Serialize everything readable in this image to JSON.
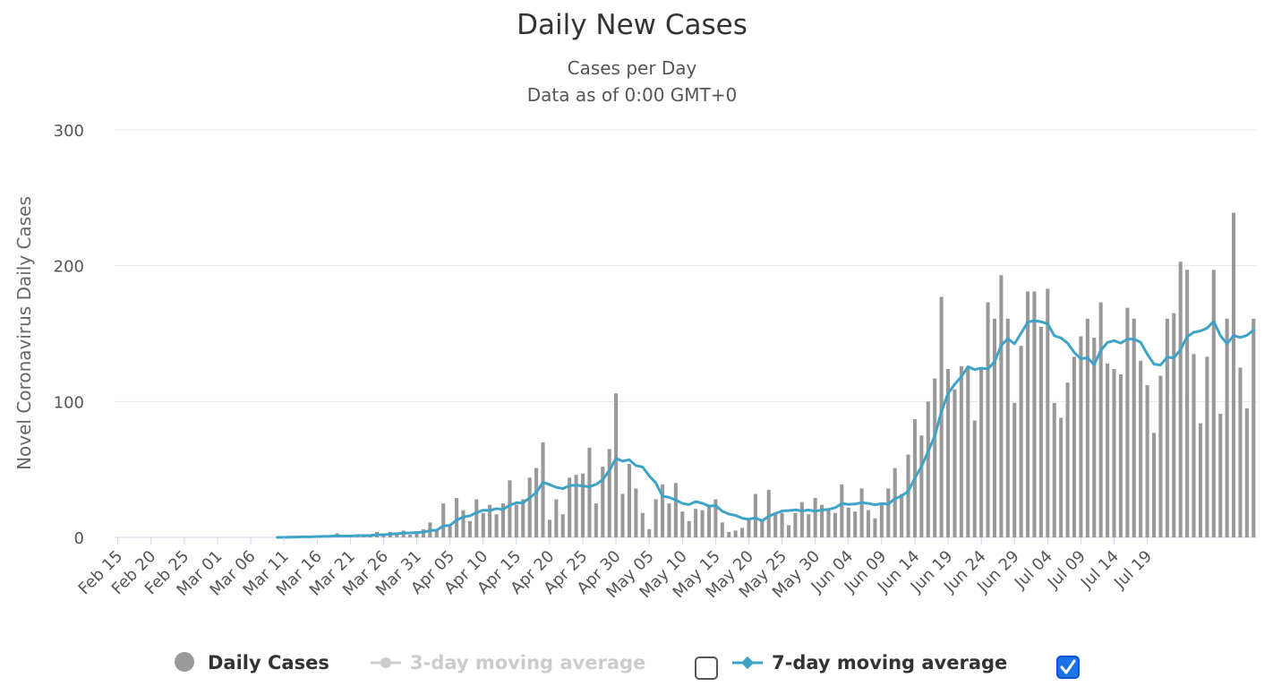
{
  "chart_data": {
    "type": "bar",
    "title": "Daily New Cases",
    "subtitle_lines": [
      "Cases per Day",
      "Data as of 0:00 GMT+0"
    ],
    "ylabel": "Novel Coronavirus Daily Cases",
    "xlabel": "",
    "ylim": [
      0,
      300
    ],
    "yticks": [
      0,
      100,
      200,
      300
    ],
    "grid": true,
    "start_date": "Feb 15",
    "x_tick_labels": [
      "Feb 15",
      "Feb 20",
      "Feb 25",
      "Mar 01",
      "Mar 06",
      "Mar 11",
      "Mar 16",
      "Mar 21",
      "Mar 26",
      "Mar 31",
      "Apr 05",
      "Apr 10",
      "Apr 15",
      "Apr 20",
      "Apr 25",
      "Apr 30",
      "May 05",
      "May 10",
      "May 15",
      "May 20",
      "May 25",
      "May 30",
      "Jun 04",
      "Jun 09",
      "Jun 14",
      "Jun 19",
      "Jun 24",
      "Jun 29",
      "Jul 04",
      "Jul 09",
      "Jul 14",
      "Jul 19"
    ],
    "x_tick_interval_days": 5,
    "series": [
      {
        "name": "Daily Cases",
        "kind": "bar",
        "color": "#999999",
        "values": [
          0,
          0,
          0,
          0,
          0,
          0,
          0,
          0,
          0,
          0,
          0,
          0,
          0,
          0,
          0,
          0,
          0,
          0,
          0,
          0,
          0,
          0,
          0,
          0,
          0,
          0,
          1,
          1,
          1,
          0,
          1,
          1,
          1,
          3,
          0,
          1,
          2,
          1,
          2,
          4,
          3,
          4,
          3,
          5,
          2,
          4,
          6,
          11,
          6,
          25,
          8,
          29,
          20,
          12,
          28,
          18,
          24,
          17,
          25,
          42,
          24,
          28,
          44,
          51,
          70,
          13,
          28,
          17,
          44,
          46,
          47,
          66,
          25,
          52,
          65,
          106,
          32,
          54,
          36,
          18,
          6,
          28,
          39,
          25,
          40,
          19,
          12,
          21,
          20,
          24,
          28,
          11,
          4,
          5,
          7,
          14,
          32,
          12,
          35,
          18,
          18,
          9,
          18,
          26,
          17,
          29,
          24,
          21,
          18,
          39,
          22,
          19,
          36,
          20,
          14,
          24,
          36,
          51,
          32,
          61,
          87,
          75,
          100,
          117,
          177,
          124,
          109,
          126,
          126,
          86,
          124,
          173,
          161,
          193,
          161,
          99,
          141,
          181,
          181,
          155,
          183,
          99,
          88,
          114,
          133,
          148,
          161,
          147,
          173,
          128,
          124,
          120,
          169,
          161,
          130,
          112,
          77,
          119,
          161,
          165,
          203,
          197,
          135,
          84,
          133,
          197,
          91,
          161,
          239,
          125,
          95,
          161
        ]
      },
      {
        "name": "3-day moving average",
        "kind": "line",
        "color": "#cccccc",
        "visible": false
      },
      {
        "name": "7-day moving average",
        "kind": "line",
        "color": "#3fa3c8",
        "visible": true
      }
    ]
  },
  "legend": {
    "items": [
      {
        "label": "Daily Cases",
        "active": true,
        "symbol_color": "#999999"
      },
      {
        "label": "3-day moving average",
        "active": false,
        "symbol_color": "#cccccc",
        "checked": false
      },
      {
        "label": "7-day moving average",
        "active": true,
        "symbol_color": "#3fa3c8",
        "checked": true
      }
    ]
  },
  "colors": {
    "checkbox_checked": "#1a73e8"
  }
}
